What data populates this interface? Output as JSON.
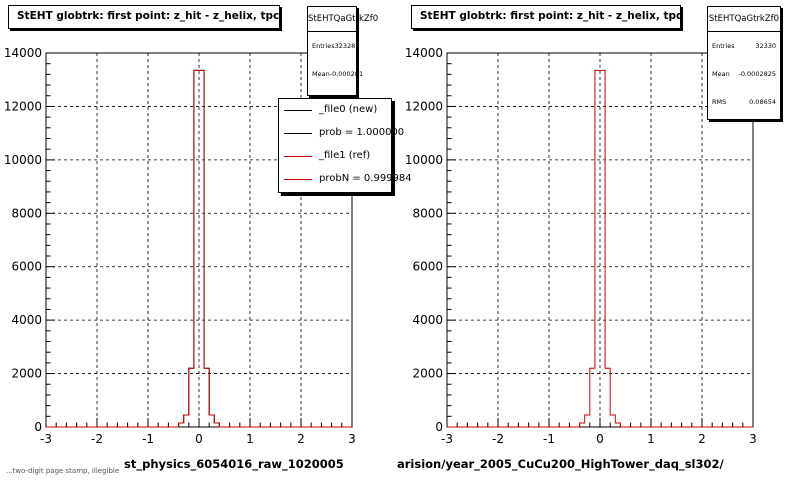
{
  "chart_data": [
    {
      "type": "histogram",
      "title": "StEHT globtrk: first point: z_hit - z_helix, tpc",
      "xlabel": "st_physics_6054016_raw_1020005",
      "ylabel": "",
      "xlim": [
        -3,
        3
      ],
      "ylim": [
        0,
        14000
      ],
      "x_ticks": [
        -3,
        -2,
        -1,
        0,
        1,
        2,
        3
      ],
      "y_ticks": [
        0,
        2000,
        4000,
        6000,
        8000,
        10000,
        12000,
        14000
      ],
      "grid": true,
      "bin_edges": [
        -3.0,
        -2.8,
        -2.6,
        -2.4,
        -2.2,
        -2.0,
        -1.8,
        -1.6,
        -1.4,
        -1.2,
        -1.0,
        -0.8,
        -0.6,
        -0.4,
        -0.3,
        -0.2,
        -0.1,
        0.0,
        0.1,
        0.2,
        0.3,
        0.4,
        0.6,
        0.8,
        1.0,
        1.2,
        1.4,
        1.6,
        1.8,
        2.0,
        2.2,
        2.4,
        2.6,
        2.8,
        3.0
      ],
      "series": [
        {
          "name": "_file0 (new)",
          "color": "#000000",
          "values": [
            0,
            0,
            0,
            0,
            0,
            0,
            0,
            0,
            0,
            0,
            0,
            0,
            0,
            150,
            450,
            2200,
            13350,
            13350,
            2200,
            450,
            150,
            0,
            0,
            0,
            0,
            0,
            0,
            0,
            0,
            0,
            0,
            0,
            0,
            0
          ]
        },
        {
          "name": "_file1 (ref)",
          "color": "#cc0000",
          "values": [
            0,
            0,
            0,
            0,
            0,
            0,
            0,
            0,
            0,
            0,
            0,
            0,
            0,
            150,
            450,
            2200,
            13350,
            13350,
            2200,
            450,
            150,
            0,
            0,
            0,
            0,
            0,
            0,
            0,
            0,
            0,
            0,
            0,
            0,
            0
          ]
        }
      ],
      "stats": {
        "name": "StEHTQaGtrkZf0",
        "entries_label": "Entries",
        "entries": "32328",
        "mean_label": "Mean",
        "mean": "-0.000281"
      },
      "legend": [
        {
          "label": "_file0 (new)",
          "color": "#000000"
        },
        {
          "label": "prob = 1.000000",
          "color": "#000000"
        },
        {
          "label": "_file1 (ref)",
          "color": "#cc0000"
        },
        {
          "label": "probN = 0.999984",
          "color": "#cc0000"
        }
      ]
    },
    {
      "type": "histogram",
      "title": "StEHT globtrk: first point: z_hit - z_helix, tpc",
      "xlabel": "arision/year_2005_CuCu200_HighTower_daq_sl302/",
      "ylabel": "",
      "xlim": [
        -3,
        3
      ],
      "ylim": [
        0,
        14000
      ],
      "x_ticks": [
        -3,
        -2,
        -1,
        0,
        1,
        2,
        3
      ],
      "y_ticks": [
        0,
        2000,
        4000,
        6000,
        8000,
        10000,
        12000,
        14000
      ],
      "grid": true,
      "bin_edges": [
        -3.0,
        -2.8,
        -2.6,
        -2.4,
        -2.2,
        -2.0,
        -1.8,
        -1.6,
        -1.4,
        -1.2,
        -1.0,
        -0.8,
        -0.6,
        -0.4,
        -0.3,
        -0.2,
        -0.1,
        0.0,
        0.1,
        0.2,
        0.3,
        0.4,
        0.6,
        0.8,
        1.0,
        1.2,
        1.4,
        1.6,
        1.8,
        2.0,
        2.2,
        2.4,
        2.6,
        2.8,
        3.0
      ],
      "series": [
        {
          "name": "",
          "color": "#cc0000",
          "values": [
            0,
            0,
            0,
            0,
            0,
            0,
            0,
            0,
            0,
            0,
            0,
            0,
            0,
            150,
            450,
            2200,
            13350,
            13350,
            2200,
            450,
            150,
            0,
            0,
            0,
            0,
            0,
            0,
            0,
            0,
            0,
            0,
            0,
            0,
            0
          ]
        }
      ],
      "stats": {
        "name": "StEHTQaGtrkZf0",
        "entries_label": "Entries",
        "entries": "32330",
        "mean_label": "Mean",
        "mean": "-0.0002825",
        "rms_label": "RMS",
        "rms": "0.08654"
      }
    }
  ],
  "footer": "...two-digit page stamp, illegible"
}
